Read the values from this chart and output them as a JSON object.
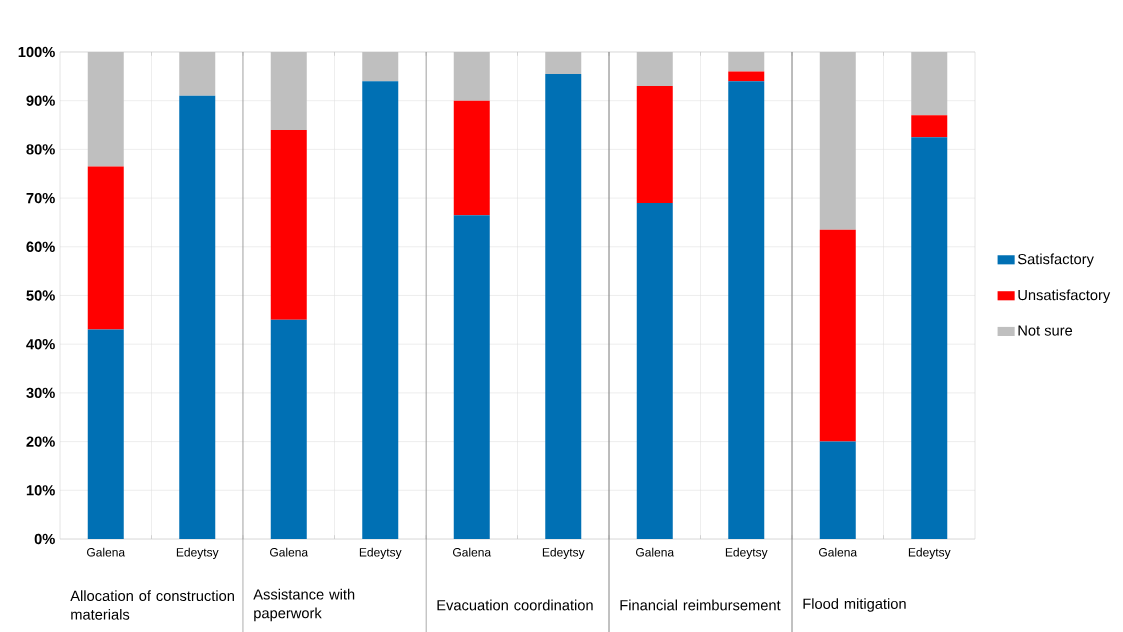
{
  "chart_data": {
    "type": "bar",
    "stacked": true,
    "categories": [
      "Galena",
      "Edeytsy",
      "Galena",
      "Edeytsy",
      "Galena",
      "Edeytsy",
      "Galena",
      "Edeytsy",
      "Galena",
      "Edeytsy"
    ],
    "series": [
      {
        "name": "Satisfactory",
        "color": "#0070b4",
        "values": [
          43,
          91,
          45,
          94,
          66.5,
          95.5,
          69,
          94,
          20,
          82.5
        ]
      },
      {
        "name": "Unsatisfactory",
        "color": "#ff0000",
        "values": [
          33.5,
          0,
          39,
          0,
          23.5,
          0,
          24,
          2,
          43.5,
          4.5
        ]
      },
      {
        "name": "Not sure",
        "color": "#bfbfbf",
        "values": [
          23.5,
          9,
          16,
          6,
          10,
          4.5,
          7,
          4,
          36.5,
          13
        ]
      }
    ],
    "annotations": [
      "Allocation of construction materials",
      "Assistance with paperwork",
      "Evacuation coordination",
      "Financial reimbursement",
      "Flood mitigation"
    ],
    "ylim": [
      0,
      100
    ],
    "yticks": [
      {
        "value": 0,
        "label": "0%"
      },
      {
        "value": 10,
        "label": "10%"
      },
      {
        "value": 20,
        "label": "20%"
      },
      {
        "value": 30,
        "label": "30%"
      },
      {
        "value": 40,
        "label": "40%"
      },
      {
        "value": 50,
        "label": "50%"
      },
      {
        "value": 60,
        "label": "60%"
      },
      {
        "value": 70,
        "label": "70%"
      },
      {
        "value": 80,
        "label": "80%"
      },
      {
        "value": 90,
        "label": "90%"
      },
      {
        "value": 100,
        "label": "100%"
      }
    ],
    "grid": true,
    "legend": "right"
  }
}
